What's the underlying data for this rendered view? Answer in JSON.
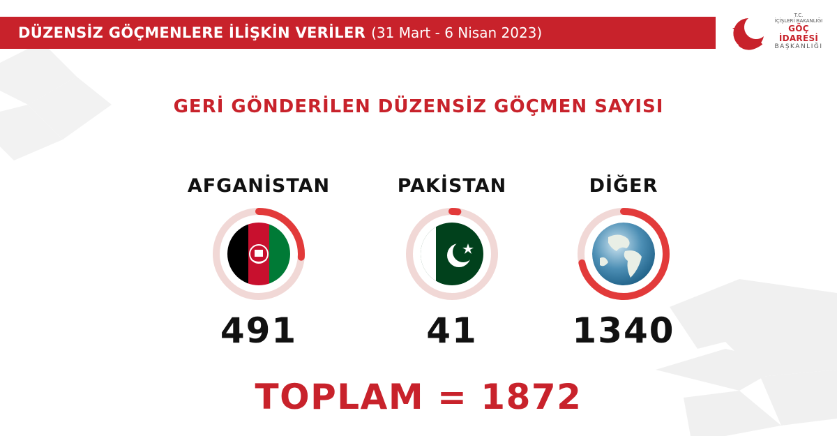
{
  "header": {
    "title": "DÜZENSİZ GÖÇMENLERE İLİŞKİN VERİLER",
    "date_range": "(31 Mart - 6 Nisan 2023)"
  },
  "logo": {
    "line1": "T.C.",
    "line2": "İÇİŞLERİ BAKANLIĞI",
    "line3": "GÖÇ İDARESİ",
    "line4": "BAŞKANLIĞI"
  },
  "colors": {
    "accent": "#c8222b",
    "ring_track": "#f1d8d6",
    "ring_progress": "#e23a3a"
  },
  "chart_data": {
    "type": "pie",
    "title": "GERİ GÖNDERİLEN DÜZENSİZ GÖÇMEN SAYISI",
    "categories": [
      "AFGANİSTAN",
      "PAKİSTAN",
      "DİĞER"
    ],
    "values": [
      491,
      41,
      1340
    ],
    "value_labels": [
      "491",
      "41",
      "1340"
    ],
    "icons": [
      "afghanistan-flag-icon",
      "pakistan-flag-icon",
      "globe-icon"
    ],
    "total": 1872
  },
  "total_label": "TOPLAM = 1872"
}
